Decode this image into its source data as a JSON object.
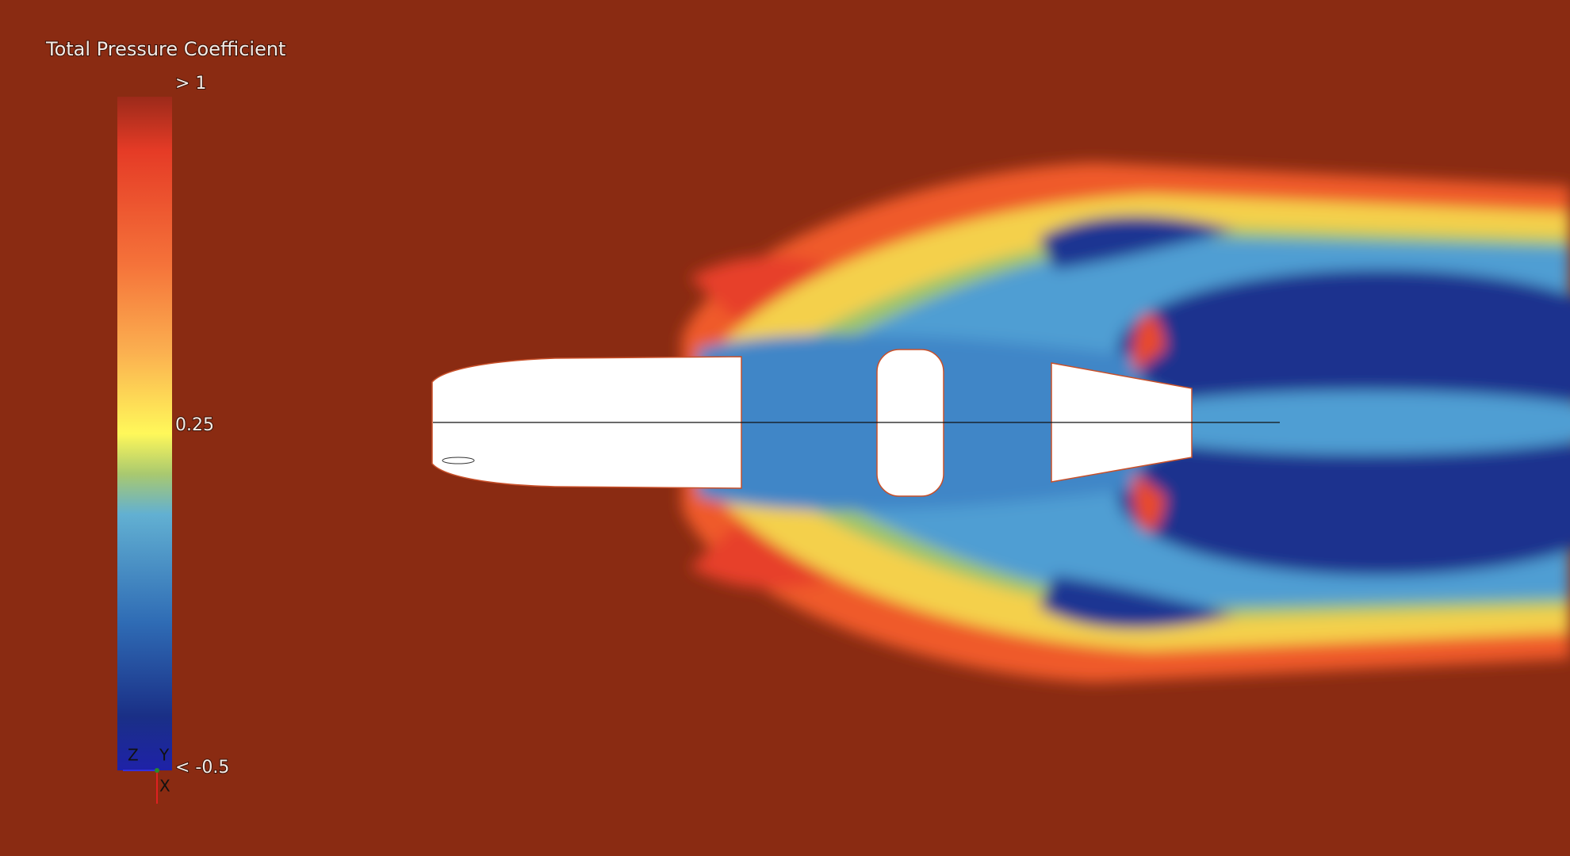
{
  "legend": {
    "title": "Total Pressure Coefficient",
    "labels": [
      "> 1",
      "0.25",
      "< -0.5"
    ]
  },
  "axes": {
    "z": "Z",
    "y": "Y",
    "x": "X"
  }
}
